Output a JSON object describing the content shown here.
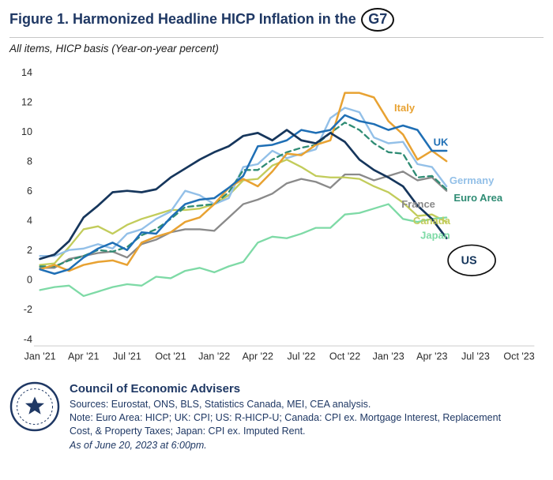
{
  "header": {
    "title_main": "Figure 1. Harmonized Headline HICP Inflation in the",
    "title_circled": "G7",
    "subtitle": "All items, HICP basis (Year-on-year percent)"
  },
  "chart_data": {
    "type": "line",
    "title": "Harmonized Headline HICP Inflation in the G7",
    "xlabel": "",
    "ylabel": "Year-on-year percent",
    "ylim": [
      -4,
      14
    ],
    "y_ticks": [
      14,
      12,
      10,
      8,
      6,
      4,
      2,
      0,
      -2,
      -4
    ],
    "grid": false,
    "legend_position": "inline-labels",
    "x_domain_months": 34,
    "x_ticks": [
      {
        "month": 0,
        "label": "Jan '21"
      },
      {
        "month": 3,
        "label": "Apr '21"
      },
      {
        "month": 6,
        "label": "Jul '21"
      },
      {
        "month": 9,
        "label": "Oct '21"
      },
      {
        "month": 12,
        "label": "Jan '22"
      },
      {
        "month": 15,
        "label": "Apr '22"
      },
      {
        "month": 18,
        "label": "Jul '22"
      },
      {
        "month": 21,
        "label": "Oct '22"
      },
      {
        "month": 24,
        "label": "Jan '23"
      },
      {
        "month": 27,
        "label": "Apr '23"
      },
      {
        "month": 30,
        "label": "Jul '23"
      },
      {
        "month": 33,
        "label": "Oct '23"
      }
    ],
    "x": [
      "Jan '21",
      "Feb '21",
      "Mar '21",
      "Apr '21",
      "May '21",
      "Jun '21",
      "Jul '21",
      "Aug '21",
      "Sep '21",
      "Oct '21",
      "Nov '21",
      "Dec '21",
      "Jan '22",
      "Feb '22",
      "Mar '22",
      "Apr '22",
      "May '22",
      "Jun '22",
      "Jul '22",
      "Aug '22",
      "Sep '22",
      "Oct '22",
      "Nov '22",
      "Dec '22",
      "Jan '23",
      "Feb '23",
      "Mar '23",
      "Apr '23",
      "May '23"
    ],
    "series": [
      {
        "id": "france",
        "name": "France",
        "color": "#8A8A8A",
        "width": 2.4,
        "values": [
          0.8,
          0.8,
          1.4,
          1.6,
          1.8,
          1.9,
          1.5,
          2.4,
          2.7,
          3.2,
          3.4,
          3.4,
          3.3,
          4.2,
          5.1,
          5.4,
          5.8,
          6.5,
          6.8,
          6.6,
          6.2,
          7.1,
          7.1,
          6.7,
          7.0,
          7.3,
          6.7,
          6.9,
          6.0
        ],
        "label": {
          "x": 24.9,
          "y": 4.85
        }
      },
      {
        "id": "canada",
        "name": "Canada",
        "color": "#C2CC5B",
        "width": 2.4,
        "values": [
          1.0,
          1.1,
          2.2,
          3.4,
          3.6,
          3.1,
          3.7,
          4.1,
          4.4,
          4.7,
          4.7,
          4.8,
          5.1,
          5.7,
          6.7,
          6.8,
          7.7,
          8.1,
          7.6,
          7.0,
          6.9,
          6.9,
          6.8,
          6.3,
          5.9,
          5.2,
          4.3,
          4.4,
          3.9
        ],
        "label": {
          "x": 25.7,
          "y": 3.75
        }
      },
      {
        "id": "japan",
        "name": "Japan",
        "color": "#7EDAA6",
        "width": 2.4,
        "values": [
          -0.7,
          -0.5,
          -0.4,
          -1.1,
          -0.8,
          -0.5,
          -0.3,
          -0.4,
          0.2,
          0.1,
          0.6,
          0.8,
          0.5,
          0.9,
          1.2,
          2.5,
          2.9,
          2.8,
          3.1,
          3.5,
          3.5,
          4.4,
          4.5,
          4.8,
          5.1,
          4.1,
          3.9,
          4.1,
          4.2
        ],
        "label": {
          "x": 26.2,
          "y": 2.75
        }
      },
      {
        "id": "germany",
        "name": "Germany",
        "color": "#93C0E8",
        "width": 2.5,
        "values": [
          1.6,
          1.6,
          2.0,
          2.1,
          2.4,
          2.1,
          3.1,
          3.4,
          4.1,
          4.6,
          6.0,
          5.7,
          5.1,
          5.5,
          7.6,
          7.8,
          8.7,
          8.2,
          8.5,
          8.8,
          10.9,
          11.6,
          11.3,
          9.6,
          9.2,
          9.3,
          7.8,
          7.6,
          6.3
        ],
        "label": {
          "x": 28.2,
          "y": 6.45
        }
      },
      {
        "id": "euro_area",
        "name": "Euro Area",
        "color": "#2F8C74",
        "width": 2.4,
        "dash": "7 5",
        "values": [
          0.9,
          0.9,
          1.3,
          1.6,
          2.0,
          1.9,
          2.2,
          3.0,
          3.4,
          4.1,
          4.9,
          5.0,
          5.1,
          5.9,
          7.4,
          7.4,
          8.1,
          8.6,
          8.9,
          9.1,
          9.9,
          10.6,
          10.1,
          9.2,
          8.6,
          8.5,
          6.9,
          7.0,
          6.1
        ],
        "label": {
          "x": 28.5,
          "y": 5.3
        }
      },
      {
        "id": "italy",
        "name": "Italy",
        "color": "#E8A232",
        "width": 2.6,
        "values": [
          0.7,
          1.0,
          0.6,
          1.0,
          1.2,
          1.3,
          1.0,
          2.5,
          2.9,
          3.2,
          3.9,
          4.2,
          5.1,
          6.2,
          6.8,
          6.3,
          7.3,
          8.5,
          8.4,
          9.1,
          9.4,
          12.6,
          12.6,
          12.3,
          10.7,
          9.8,
          8.1,
          8.7,
          8.0
        ],
        "label": {
          "x": 24.4,
          "y": 11.35
        }
      },
      {
        "id": "uk",
        "name": "UK",
        "color": "#1F6FB5",
        "width": 2.6,
        "values": [
          0.7,
          0.4,
          0.7,
          1.5,
          2.1,
          2.5,
          2.0,
          3.2,
          3.1,
          4.2,
          5.1,
          5.4,
          5.5,
          6.2,
          7.0,
          9.0,
          9.1,
          9.4,
          10.1,
          9.9,
          10.1,
          11.1,
          10.7,
          10.5,
          10.1,
          10.4,
          10.1,
          8.7,
          8.7
        ],
        "label": {
          "x": 27.1,
          "y": 9.05
        }
      },
      {
        "id": "us",
        "name": "US",
        "color": "#16365C",
        "width": 2.8,
        "values": [
          1.4,
          1.7,
          2.6,
          4.2,
          5.0,
          5.9,
          6.0,
          5.9,
          6.1,
          6.9,
          7.5,
          8.1,
          8.6,
          9.0,
          9.7,
          9.9,
          9.4,
          10.1,
          9.4,
          9.2,
          9.9,
          9.3,
          8.1,
          7.4,
          6.9,
          6.3,
          5.0,
          4.1,
          2.8
        ],
        "label": {
          "x": 29.0,
          "y": 1.05,
          "circled": true,
          "big": true
        }
      }
    ]
  },
  "footer": {
    "org": "Council of Economic Advisers",
    "sources": "Sources: Eurostat, ONS, BLS, Statistics Canada, MEI, CEA analysis.",
    "note": "Note: Euro Area: HICP; UK: CPI; US: R-HICP-U; Canada: CPI ex. Mortgage Interest, Replacement Cost, & Property Taxes; Japan: CPI ex. Imputed Rent.",
    "as_of": "As of June 20, 2023 at 6:00pm."
  }
}
